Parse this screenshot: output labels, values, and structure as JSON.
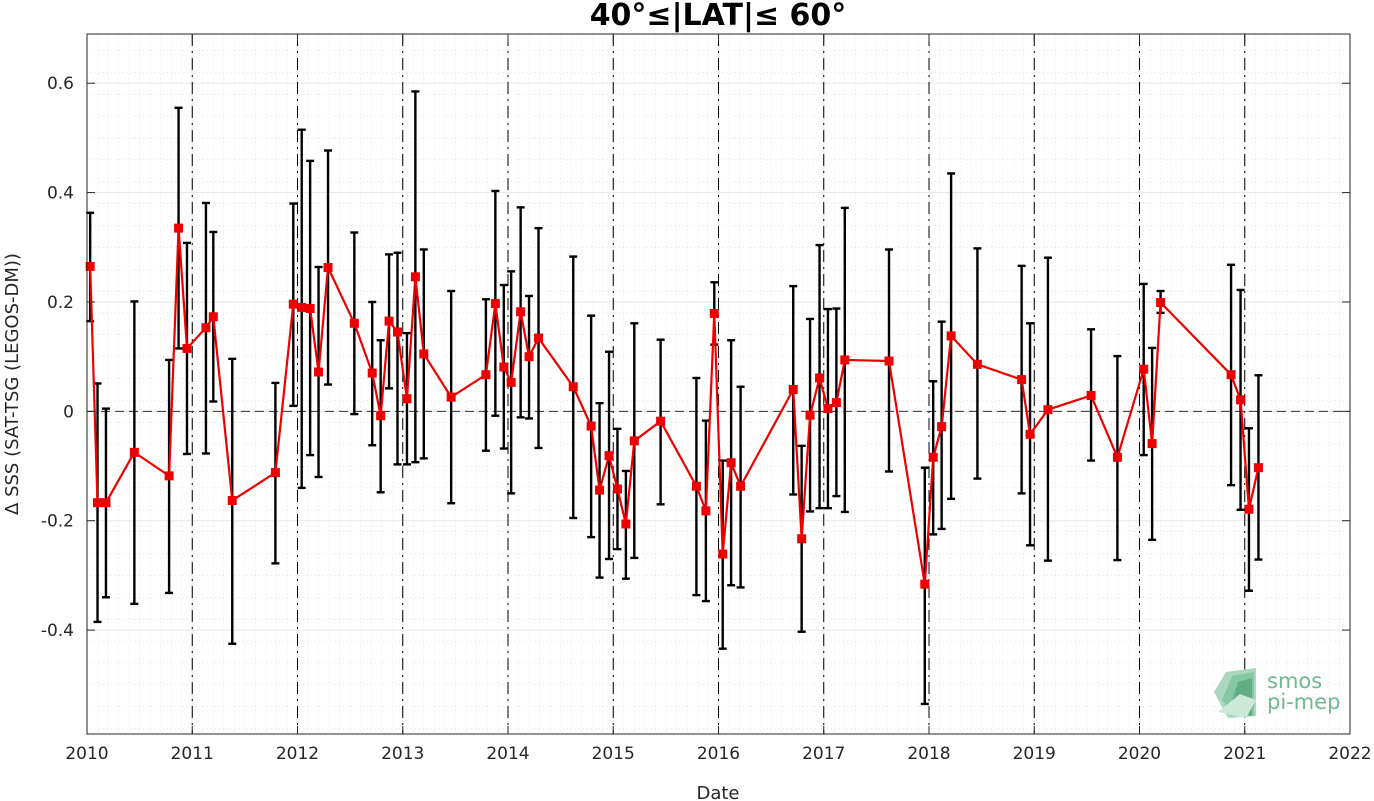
{
  "chart_data": {
    "type": "scatter",
    "title": "40°≤|LAT|≤ 60°",
    "xlabel": "Date",
    "ylabel": "Δ SSS (SAT-TSG (LEGOS-DM))",
    "xlim": [
      2010.0,
      2022.0
    ],
    "ylim": [
      -0.59,
      0.69
    ],
    "x_ticks": [
      2010,
      2011,
      2012,
      2013,
      2014,
      2015,
      2016,
      2017,
      2018,
      2019,
      2020,
      2021,
      2022
    ],
    "x_tick_labels": [
      "2010",
      "2011",
      "2012",
      "2013",
      "2014",
      "2015",
      "2016",
      "2017",
      "2018",
      "2019",
      "2020",
      "2021",
      "2022"
    ],
    "y_ticks": [
      -0.4,
      -0.2,
      0,
      0.2,
      0.4,
      0.6
    ],
    "y_tick_labels": [
      "-0.4",
      "-0.2",
      "0",
      "0.2",
      "0.4",
      "0.6"
    ],
    "year_lines_at": [
      2011,
      2012,
      2013,
      2014,
      2015,
      2016,
      2017,
      2018,
      2019,
      2020,
      2021
    ],
    "zero_line": true,
    "grid": true,
    "marker_color": "#ee0000",
    "errorbar_color": "#000000",
    "series": [
      {
        "x": [
          2010.03,
          2010.1,
          2010.18,
          2010.45,
          2010.78,
          2010.87,
          2010.95,
          2011.13,
          2011.2,
          2011.38,
          2011.79,
          2011.96,
          2012.04,
          2012.12,
          2012.2,
          2012.29,
          2012.54,
          2012.71,
          2012.79,
          2012.87,
          2012.95,
          2013.04,
          2013.12,
          2013.2,
          2013.46,
          2013.79,
          2013.88,
          2013.96,
          2014.03,
          2014.12,
          2014.2,
          2014.29,
          2014.62,
          2014.79,
          2014.87,
          2014.96,
          2015.04,
          2015.12,
          2015.2,
          2015.45,
          2015.79,
          2015.88,
          2015.96,
          2016.04,
          2016.12,
          2016.21,
          2016.71,
          2016.79,
          2016.87,
          2016.96,
          2017.04,
          2017.12,
          2017.2,
          2017.62,
          2017.96,
          2018.04,
          2018.12,
          2018.21,
          2018.46,
          2018.88,
          2018.96,
          2019.13,
          2019.54,
          2019.79,
          2020.04,
          2020.12,
          2020.2,
          2020.87,
          2020.96,
          2021.04,
          2021.13
        ],
        "y": [
          0.265,
          -0.167,
          -0.167,
          -0.075,
          -0.118,
          0.335,
          0.115,
          0.153,
          0.173,
          -0.163,
          -0.112,
          0.196,
          0.19,
          0.188,
          0.072,
          0.263,
          0.161,
          0.07,
          -0.008,
          0.165,
          0.145,
          0.023,
          0.246,
          0.105,
          0.026,
          0.067,
          0.197,
          0.081,
          0.053,
          0.182,
          0.1,
          0.134,
          0.045,
          -0.027,
          -0.144,
          -0.081,
          -0.142,
          -0.206,
          -0.054,
          -0.018,
          -0.137,
          -0.182,
          0.179,
          -0.261,
          -0.094,
          -0.137,
          0.04,
          -0.233,
          -0.007,
          0.061,
          0.005,
          0.016,
          0.094,
          0.092,
          -0.316,
          -0.084,
          -0.028,
          0.138,
          0.086,
          0.058,
          -0.042,
          0.003,
          0.029,
          -0.084,
          0.077,
          -0.059,
          0.199,
          0.067,
          0.021,
          -0.179,
          -0.103
        ],
        "err_low": [
          0.165,
          -0.385,
          -0.34,
          -0.352,
          -0.332,
          0.115,
          -0.078,
          -0.077,
          0.018,
          -0.425,
          -0.278,
          0.01,
          -0.14,
          -0.08,
          -0.12,
          0.049,
          -0.005,
          -0.062,
          -0.148,
          0.042,
          -0.097,
          -0.097,
          -0.093,
          -0.086,
          -0.168,
          -0.072,
          -0.008,
          -0.068,
          -0.15,
          -0.011,
          -0.013,
          -0.067,
          -0.195,
          -0.23,
          -0.304,
          -0.27,
          -0.252,
          -0.306,
          -0.268,
          -0.17,
          -0.336,
          -0.347,
          0.122,
          -0.434,
          -0.318,
          -0.322,
          -0.152,
          -0.403,
          -0.183,
          -0.177,
          -0.177,
          -0.155,
          -0.184,
          -0.11,
          -0.535,
          -0.225,
          -0.215,
          -0.16,
          -0.123,
          -0.15,
          -0.245,
          -0.273,
          -0.09,
          -0.272,
          -0.08,
          -0.235,
          0.18,
          -0.135,
          -0.18,
          -0.328,
          -0.271
        ],
        "err_high": [
          0.363,
          0.051,
          0.005,
          0.201,
          0.094,
          0.555,
          0.308,
          0.381,
          0.328,
          0.096,
          0.052,
          0.38,
          0.515,
          0.458,
          0.264,
          0.477,
          0.327,
          0.2,
          0.13,
          0.287,
          0.29,
          0.143,
          0.585,
          0.296,
          0.22,
          0.205,
          0.403,
          0.231,
          0.256,
          0.373,
          0.211,
          0.335,
          0.283,
          0.175,
          0.015,
          0.109,
          -0.032,
          -0.109,
          0.161,
          0.131,
          0.061,
          -0.017,
          0.236,
          -0.09,
          0.13,
          0.045,
          0.229,
          -0.063,
          0.169,
          0.304,
          0.187,
          0.188,
          0.372,
          0.296,
          -0.103,
          0.055,
          0.164,
          0.435,
          0.298,
          0.266,
          0.161,
          0.281,
          0.15,
          0.101,
          0.233,
          0.116,
          0.22,
          0.268,
          0.222,
          -0.031,
          0.066
        ]
      }
    ]
  },
  "logo": {
    "line1": "smos",
    "line2": "pi-mep",
    "color": "#6fb892"
  }
}
